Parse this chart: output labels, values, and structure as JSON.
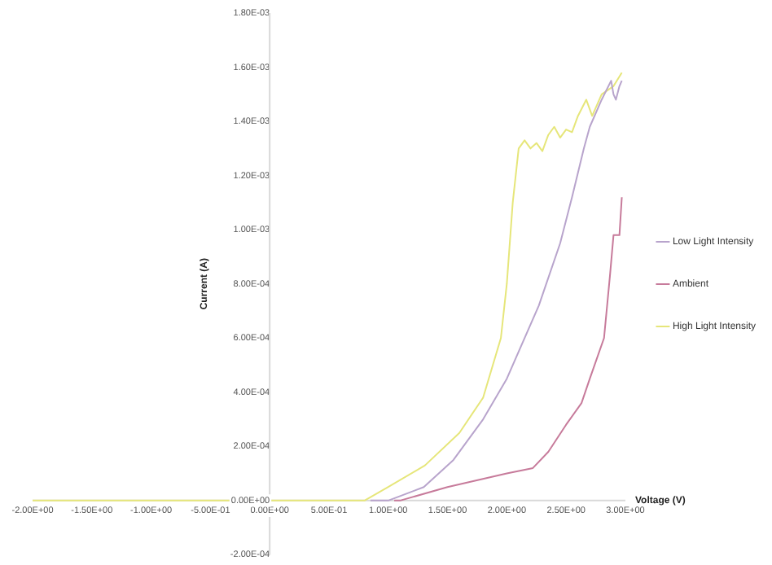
{
  "chart_data": {
    "type": "line",
    "xlabel": "Voltage (V)",
    "ylabel": "Current (A)",
    "xlim": [
      -2,
      3
    ],
    "ylim": [
      -0.0002,
      0.0018
    ],
    "xticks": [
      {
        "value": -2,
        "label": "-2.00E+00"
      },
      {
        "value": -1.5,
        "label": "-1.50E+00"
      },
      {
        "value": -1,
        "label": "-1.00E+00"
      },
      {
        "value": -0.5,
        "label": "-5.00E-01"
      },
      {
        "value": 0,
        "label": "0.00E+00"
      },
      {
        "value": 0.5,
        "label": "5.00E-01"
      },
      {
        "value": 1,
        "label": "1.00E+00"
      },
      {
        "value": 1.5,
        "label": "1.50E+00"
      },
      {
        "value": 2,
        "label": "2.00E+00"
      },
      {
        "value": 2.5,
        "label": "2.50E+00"
      },
      {
        "value": 3,
        "label": "3.00E+00"
      }
    ],
    "yticks": [
      {
        "value": -0.0002,
        "label": "-2.00E-04"
      },
      {
        "value": 0,
        "label": "0.00E+00"
      },
      {
        "value": 0.0002,
        "label": "2.00E-04"
      },
      {
        "value": 0.0004,
        "label": "4.00E-04"
      },
      {
        "value": 0.0006,
        "label": "6.00E-04"
      },
      {
        "value": 0.0008,
        "label": "8.00E-04"
      },
      {
        "value": 0.001,
        "label": "1.00E-03"
      },
      {
        "value": 0.0012,
        "label": "1.20E-03"
      },
      {
        "value": 0.0014,
        "label": "1.40E-03"
      },
      {
        "value": 0.0016,
        "label": "1.60E-03"
      },
      {
        "value": 0.0018,
        "label": "1.80E-03"
      }
    ],
    "grid": false,
    "legend": "right",
    "marker": "none",
    "line_style": "solid",
    "series": [
      {
        "name": "Low Light Intensity",
        "color": "#b8a4cc",
        "x": [
          0.85,
          0.85,
          0.9,
          1.0,
          1.3,
          1.55,
          1.8,
          2.0,
          2.27,
          2.45,
          2.55,
          2.65,
          2.7,
          2.8,
          2.88,
          2.9,
          2.92,
          2.95,
          2.97
        ],
        "values": [
          0,
          0,
          0,
          0,
          5e-05,
          0.00015,
          0.0003,
          0.00045,
          0.00072,
          0.00095,
          0.00112,
          0.0013,
          0.00138,
          0.00148,
          0.00155,
          0.0015,
          0.00148,
          0.00153,
          0.00155
        ]
      },
      {
        "name": "Ambient",
        "color": "#c77b9b",
        "x": [
          1.05,
          1.05,
          1.1,
          1.5,
          2.0,
          2.22,
          2.35,
          2.5,
          2.63,
          2.7,
          2.82,
          2.87,
          2.9,
          2.95,
          2.97
        ],
        "values": [
          0,
          0,
          0,
          5e-05,
          0.0001,
          0.00012,
          0.00018,
          0.00028,
          0.00036,
          0.00045,
          0.0006,
          0.00083,
          0.00098,
          0.00098,
          0.00112
        ]
      },
      {
        "name": "High Light Intensity",
        "color": "#e6e67a",
        "x": [
          -2,
          -1,
          0.6,
          0.8,
          1.0,
          1.31,
          1.6,
          1.8,
          1.95,
          2.0,
          2.05,
          2.1,
          2.15,
          2.2,
          2.25,
          2.3,
          2.35,
          2.4,
          2.45,
          2.5,
          2.55,
          2.6,
          2.67,
          2.72,
          2.8,
          2.9,
          2.97
        ],
        "values": [
          0,
          0,
          0,
          0,
          5e-05,
          0.00013,
          0.00025,
          0.00038,
          0.0006,
          0.0008,
          0.0011,
          0.0013,
          0.00133,
          0.0013,
          0.00132,
          0.00129,
          0.00135,
          0.00138,
          0.00134,
          0.00137,
          0.00136,
          0.00142,
          0.00148,
          0.00142,
          0.0015,
          0.00153,
          0.00158
        ]
      }
    ]
  }
}
